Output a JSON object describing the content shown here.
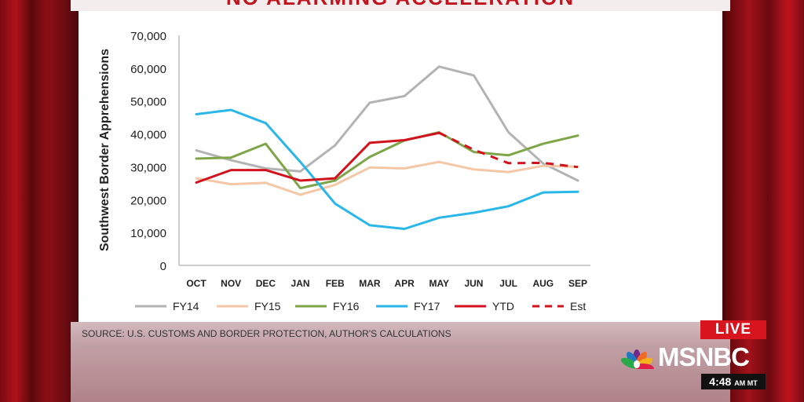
{
  "broadcast": {
    "headline": "NO ALARMING ACCELERATION",
    "source": "SOURCE: U.S. CUSTOMS AND BORDER PROTECTION, AUTHOR'S CALCULATIONS",
    "live_label": "LIVE",
    "network": "MSNBC",
    "time": "4:48",
    "time_suffix": "AM MT"
  },
  "colors": {
    "FY14": "#b3b3b3",
    "FY15": "#f4c7a6",
    "FY16": "#7ea548",
    "FY17": "#29b6e8",
    "YTD": "#d2121d",
    "Est": "#d2121d"
  },
  "chart_data": {
    "type": "line",
    "title": "",
    "xlabel": "",
    "ylabel": "Southwest Border Apprehensions",
    "ylim": [
      0,
      70000
    ],
    "yticks": [
      "0",
      "10,000",
      "20,000",
      "30,000",
      "40,000",
      "50,000",
      "60,000",
      "70,000"
    ],
    "categories": [
      "OCT",
      "NOV",
      "DEC",
      "JAN",
      "FEB",
      "MAR",
      "APR",
      "MAY",
      "JUN",
      "JUL",
      "AUG",
      "SEP"
    ],
    "series": [
      {
        "name": "FY14",
        "style": "solid",
        "values": [
          35000,
          32000,
          29500,
          28600,
          36500,
          49500,
          51500,
          60500,
          57800,
          40500,
          31000,
          25800
        ]
      },
      {
        "name": "FY15",
        "style": "solid",
        "values": [
          26500,
          24700,
          25100,
          21500,
          24500,
          29800,
          29500,
          31500,
          29200,
          28400,
          30300,
          30000
        ]
      },
      {
        "name": "FY16",
        "style": "solid",
        "values": [
          32500,
          32800,
          37000,
          23500,
          25800,
          33000,
          38000,
          40500,
          34500,
          33500,
          37000,
          39500
        ]
      },
      {
        "name": "FY17",
        "style": "solid",
        "values": [
          46000,
          47300,
          43300,
          31500,
          18800,
          12200,
          11100,
          14500,
          16000,
          18000,
          22200,
          22400
        ]
      },
      {
        "name": "YTD",
        "style": "solid",
        "values": [
          25200,
          29000,
          29000,
          25800,
          26500,
          37300,
          38100,
          40300,
          null,
          null,
          null,
          null
        ]
      },
      {
        "name": "Est",
        "style": "dashed",
        "values": [
          null,
          null,
          null,
          null,
          null,
          null,
          null,
          40300,
          35200,
          31100,
          31200,
          29900
        ]
      }
    ],
    "legend": [
      "FY14",
      "FY15",
      "FY16",
      "FY17",
      "YTD",
      "Est"
    ],
    "legend_position": "bottom"
  }
}
